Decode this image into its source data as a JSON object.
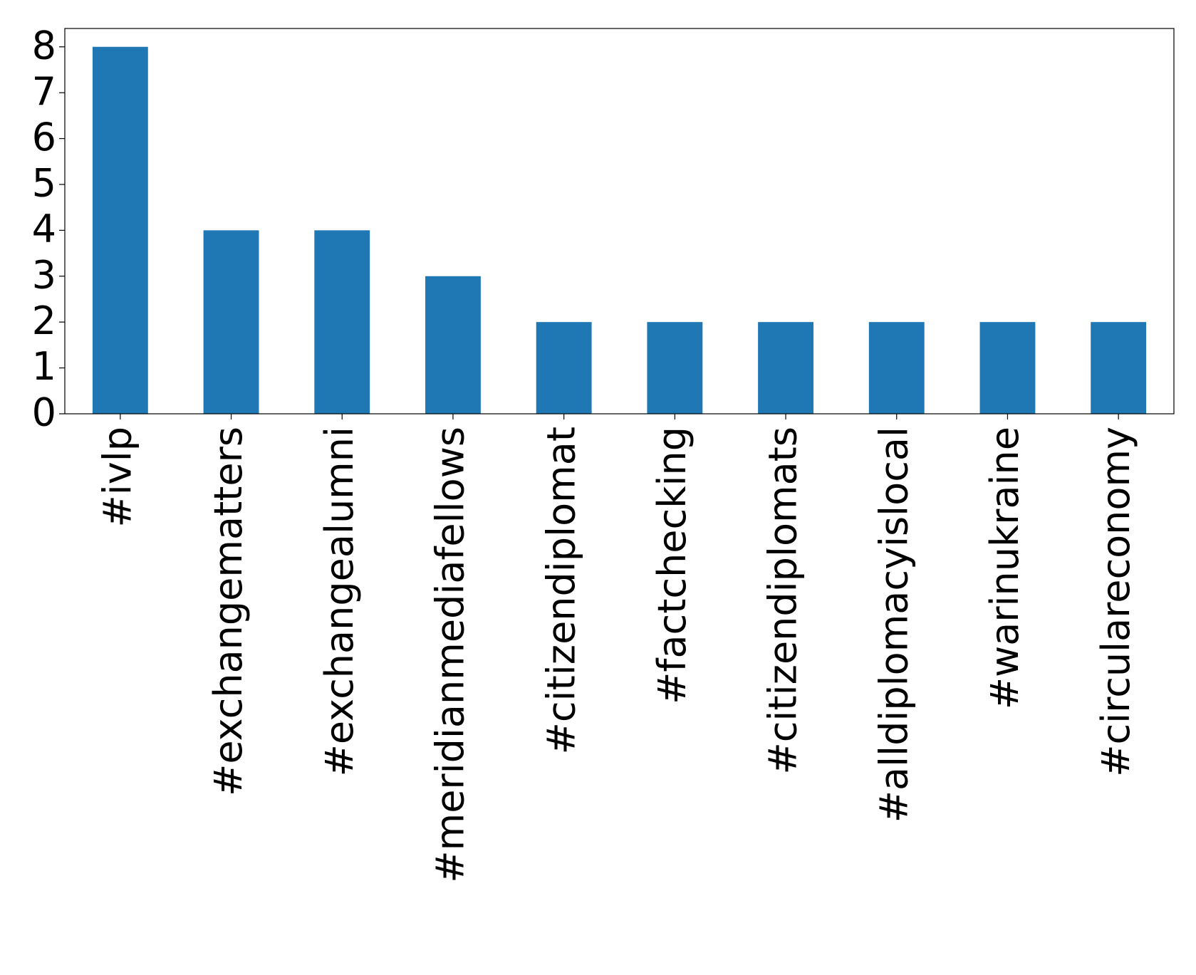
{
  "chart_data": {
    "type": "bar",
    "categories": [
      "#ivlp",
      "#exchangematters",
      "#exchangealumni",
      "#meridianmediafellows",
      "#citizendiplomat",
      "#factchecking",
      "#citizendiplomats",
      "#alldiplomacyislocal",
      "#warinukraine",
      "#circulareconomy"
    ],
    "values": [
      8,
      4,
      4,
      3,
      2,
      2,
      2,
      2,
      2,
      2
    ],
    "color": "#1f77b4",
    "ylim": [
      0,
      8.4
    ],
    "yticks": [
      0,
      1,
      2,
      3,
      4,
      5,
      6,
      7,
      8
    ],
    "grid": false
  }
}
